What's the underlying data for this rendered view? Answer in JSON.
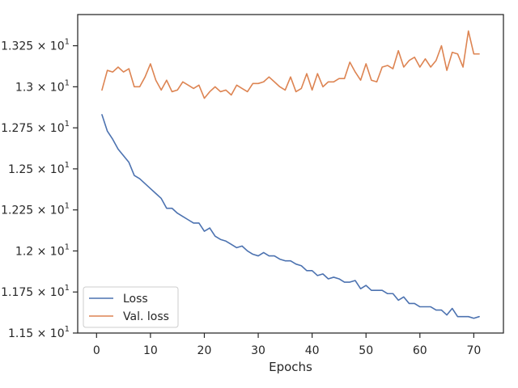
{
  "chart_data": {
    "type": "line",
    "title": "",
    "xlabel": "Epochs",
    "ylabel": "",
    "xlim": [
      -3.5,
      75.5
    ],
    "ylim": [
      11.5,
      13.44
    ],
    "grid": false,
    "legend_position": "lower-left",
    "x_ticks": [
      0,
      10,
      20,
      30,
      40,
      50,
      60,
      70
    ],
    "x_tick_labels": [
      "0",
      "10",
      "20",
      "30",
      "40",
      "50",
      "60",
      "70"
    ],
    "y_ticks": [
      11.5,
      11.75,
      12.0,
      12.25,
      12.5,
      12.75,
      13.0,
      13.25
    ],
    "y_tick_labels": [
      {
        "mantissa": "1.15",
        "exponent": "1"
      },
      {
        "mantissa": "1.175",
        "exponent": "1"
      },
      {
        "mantissa": "1.2",
        "exponent": "1"
      },
      {
        "mantissa": "1.225",
        "exponent": "1"
      },
      {
        "mantissa": "1.25",
        "exponent": "1"
      },
      {
        "mantissa": "1.275",
        "exponent": "1"
      },
      {
        "mantissa": "1.3",
        "exponent": "1"
      },
      {
        "mantissa": "1.325",
        "exponent": "1"
      }
    ],
    "x": [
      1,
      2,
      3,
      4,
      5,
      6,
      7,
      8,
      9,
      10,
      11,
      12,
      13,
      14,
      15,
      16,
      17,
      18,
      19,
      20,
      21,
      22,
      23,
      24,
      25,
      26,
      27,
      28,
      29,
      30,
      31,
      32,
      33,
      34,
      35,
      36,
      37,
      38,
      39,
      40,
      41,
      42,
      43,
      44,
      45,
      46,
      47,
      48,
      49,
      50,
      51,
      52,
      53,
      54,
      55,
      56,
      57,
      58,
      59,
      60,
      61,
      62,
      63,
      64,
      65,
      66,
      67,
      68,
      69,
      70,
      71
    ],
    "series": [
      {
        "name": "Loss",
        "color": "#4c72b0",
        "values": [
          12.83,
          12.73,
          12.68,
          12.62,
          12.58,
          12.54,
          12.46,
          12.44,
          12.41,
          12.38,
          12.35,
          12.32,
          12.26,
          12.26,
          12.23,
          12.21,
          12.19,
          12.17,
          12.17,
          12.12,
          12.14,
          12.09,
          12.07,
          12.06,
          12.04,
          12.02,
          12.03,
          12.0,
          11.98,
          11.97,
          11.99,
          11.97,
          11.97,
          11.95,
          11.94,
          11.94,
          11.92,
          11.91,
          11.88,
          11.88,
          11.85,
          11.86,
          11.83,
          11.84,
          11.83,
          11.81,
          11.81,
          11.82,
          11.77,
          11.79,
          11.76,
          11.76,
          11.76,
          11.74,
          11.74,
          11.7,
          11.72,
          11.68,
          11.68,
          11.66,
          11.66,
          11.66,
          11.64,
          11.64,
          11.61,
          11.65,
          11.6,
          11.6,
          11.6,
          11.59,
          11.6
        ]
      },
      {
        "name": "Val. loss",
        "color": "#dd8452",
        "values": [
          12.98,
          13.1,
          13.09,
          13.12,
          13.09,
          13.11,
          13.0,
          13.0,
          13.06,
          13.14,
          13.04,
          12.98,
          13.04,
          12.97,
          12.98,
          13.03,
          13.01,
          12.99,
          13.01,
          12.93,
          12.97,
          13.0,
          12.97,
          12.98,
          12.95,
          13.01,
          12.99,
          12.97,
          13.02,
          13.02,
          13.03,
          13.06,
          13.03,
          13.0,
          12.98,
          13.06,
          12.97,
          12.99,
          13.08,
          12.98,
          13.08,
          13.0,
          13.03,
          13.03,
          13.05,
          13.05,
          13.15,
          13.09,
          13.04,
          13.14,
          13.04,
          13.03,
          13.12,
          13.13,
          13.11,
          13.22,
          13.12,
          13.16,
          13.18,
          13.12,
          13.17,
          13.12,
          13.16,
          13.25,
          13.1,
          13.21,
          13.2,
          13.12,
          13.34,
          13.2,
          13.2
        ]
      }
    ]
  }
}
